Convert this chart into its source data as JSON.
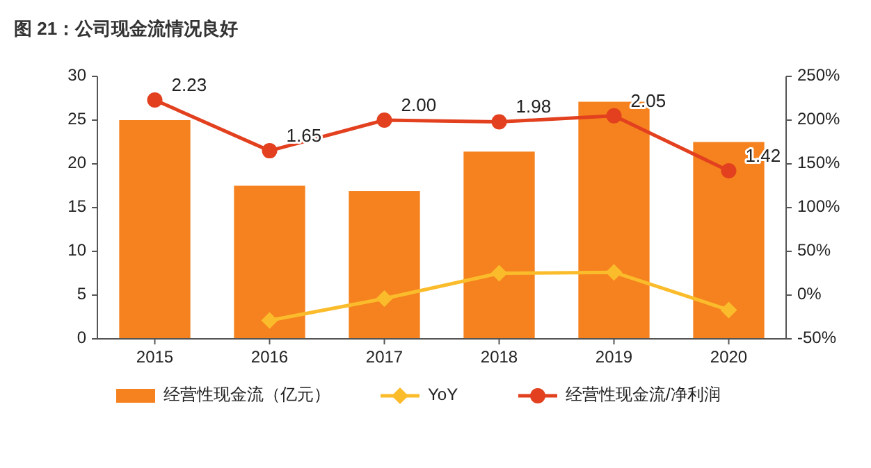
{
  "chart_data": {
    "type": "bar",
    "title": "图 21：公司现金流情况良好",
    "categories": [
      "2015",
      "2016",
      "2017",
      "2018",
      "2019",
      "2020"
    ],
    "series": [
      {
        "name": "经营性现金流（亿元）",
        "color": "#f5821f",
        "values": [
          25.0,
          17.5,
          16.9,
          21.4,
          27.1,
          22.5
        ]
      },
      {
        "name": "YoY",
        "type": "line",
        "axis": "y2",
        "color": "#fbbc2c",
        "marker": "diamond",
        "values": [
          null,
          -0.29,
          -0.04,
          0.25,
          0.26,
          -0.17
        ]
      },
      {
        "name": "经营性现金流/净利润",
        "type": "line",
        "axis": "y2",
        "color": "#e2401e",
        "marker": "circle",
        "values": [
          2.23,
          1.65,
          2.0,
          1.98,
          2.05,
          1.42
        ],
        "value_labels": [
          "2.23",
          "1.65",
          "2.00",
          "1.98",
          "2.05",
          "1.42"
        ]
      }
    ],
    "ylim": [
      0,
      30
    ],
    "yticks": [
      0,
      5,
      10,
      15,
      20,
      25,
      30
    ],
    "y2lim": [
      -0.5,
      2.5
    ],
    "y2ticks": [
      {
        "value": -0.5,
        "label": "-50%"
      },
      {
        "value": 0,
        "label": "0%"
      },
      {
        "value": 0.5,
        "label": "50%"
      },
      {
        "value": 1,
        "label": "100%"
      },
      {
        "value": 1.5,
        "label": "150%"
      },
      {
        "value": 2,
        "label": "200%"
      },
      {
        "value": 2.5,
        "label": "250%"
      }
    ],
    "legend": "bottom",
    "grid": false
  }
}
